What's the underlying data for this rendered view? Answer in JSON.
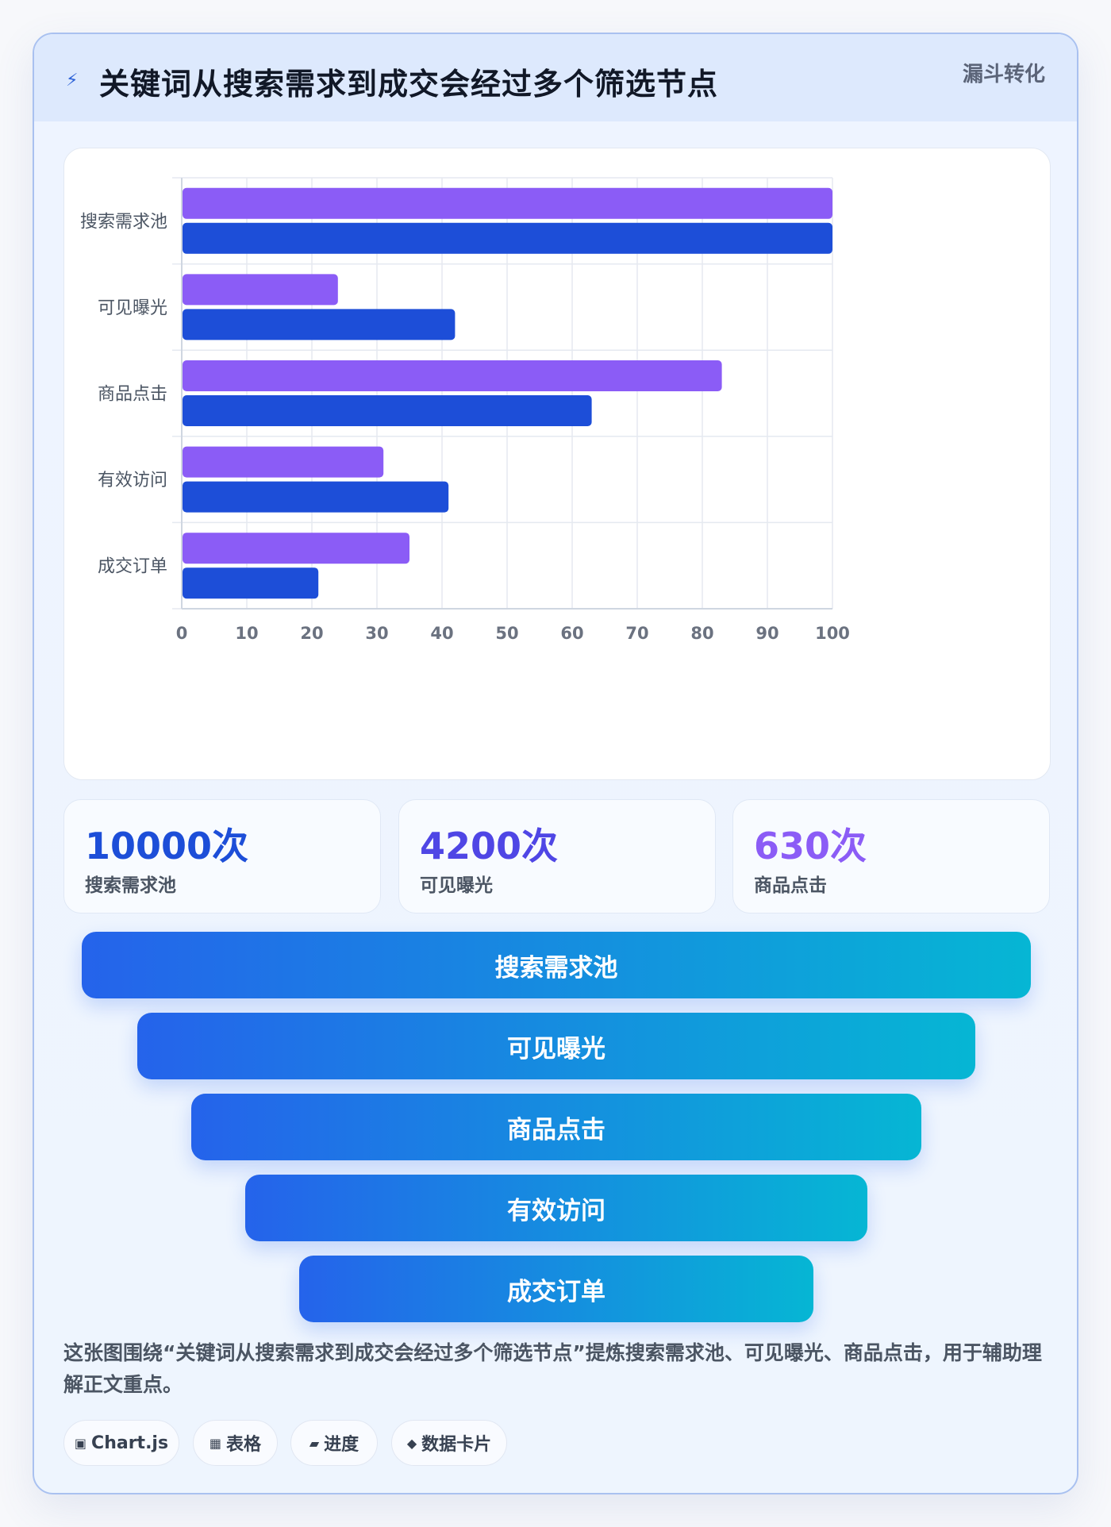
{
  "header": {
    "icon": "lightning-icon",
    "title": "关键词从搜索需求到成交会经过多个筛选节点",
    "tag": "漏斗转化"
  },
  "chart_data": {
    "type": "bar",
    "orientation": "horizontal",
    "categories": [
      "搜索需求池",
      "可见曝光",
      "商品点击",
      "有效访问",
      "成交订单"
    ],
    "series": [
      {
        "color": "#8b5cf6",
        "values": [
          100,
          24,
          83,
          31,
          35
        ]
      },
      {
        "color": "#1d4ed8",
        "values": [
          100,
          42,
          63,
          41,
          21
        ]
      }
    ],
    "xlim": [
      0,
      100
    ],
    "xticks": [
      0,
      10,
      20,
      30,
      40,
      50,
      60,
      70,
      80,
      90,
      100
    ],
    "grid": true,
    "legend": "none"
  },
  "stats": [
    {
      "value": "10000次",
      "label": "搜索需求池",
      "color": "#1d4ed8"
    },
    {
      "value": "4200次",
      "label": "可见曝光",
      "color": "#4f46e5"
    },
    {
      "value": "630次",
      "label": "商品点击",
      "color": "#8b5cf6"
    }
  ],
  "funnel": [
    "搜索需求池",
    "可见曝光",
    "商品点击",
    "有效访问",
    "成交订单"
  ],
  "description": "这张图围绕“关键词从搜索需求到成交会经过多个筛选节点”提炼搜索需求池、可见曝光、商品点击，用于辅助理解正文重点。",
  "chips": [
    {
      "icon": "▣",
      "label": "Chart.js"
    },
    {
      "icon": "▦",
      "label": "表格"
    },
    {
      "icon": "▰",
      "label": "进度"
    },
    {
      "icon": "◆",
      "label": "数据卡片"
    }
  ]
}
